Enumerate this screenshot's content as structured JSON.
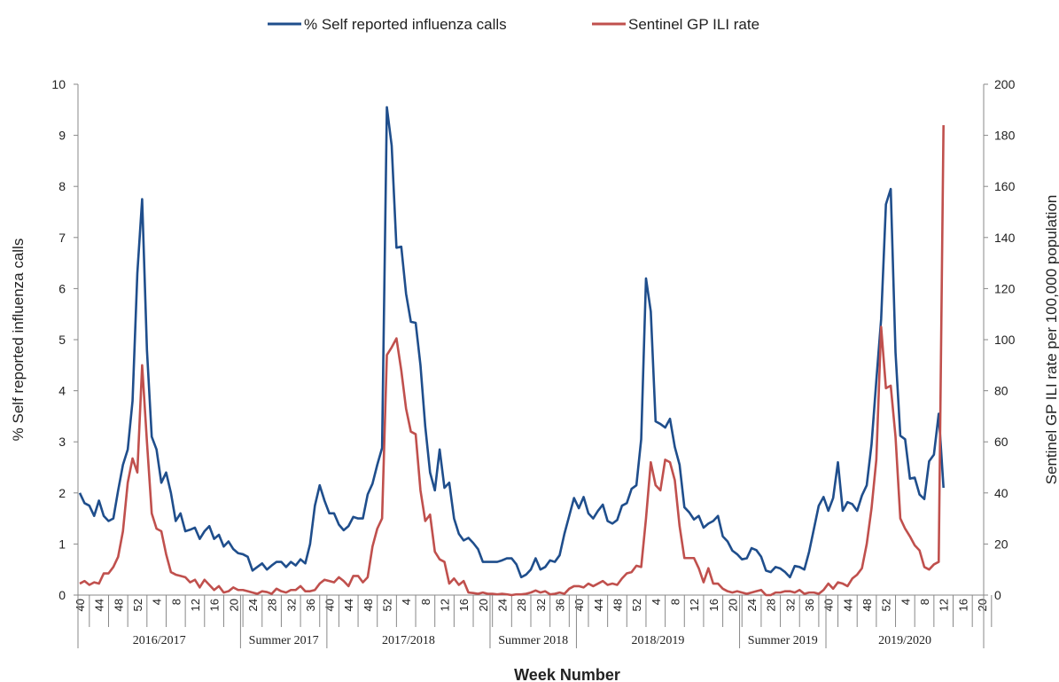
{
  "chart_data": {
    "type": "line",
    "x_label": "Week Number",
    "y_label": "% Self reported influenza calls",
    "y2_label": "Sentinel GP ILI rate per 100,000 population",
    "legend": "top",
    "grid": false,
    "ylim": [
      0,
      10
    ],
    "yticks": [
      0,
      1,
      2,
      3,
      4,
      5,
      6,
      7,
      8,
      9,
      10
    ],
    "y2lim": [
      0,
      200
    ],
    "y2ticks": [
      0,
      20,
      40,
      60,
      80,
      100,
      120,
      140,
      160,
      180,
      200
    ],
    "groups": [
      "2016/2017",
      "Summer 2017",
      "2017/2018",
      "Summer 2018",
      "2018/2019",
      "Summer 2019",
      "2019/2020"
    ],
    "categories": [
      "40",
      null,
      null,
      null,
      "44",
      null,
      null,
      null,
      "48",
      null,
      null,
      null,
      "52",
      null,
      null,
      null,
      "4",
      null,
      null,
      null,
      "8",
      null,
      null,
      null,
      "12",
      null,
      null,
      null,
      "16",
      null,
      null,
      null,
      "20",
      null,
      null,
      null,
      "24",
      null,
      null,
      null,
      "28",
      null,
      null,
      null,
      "32",
      null,
      null,
      null,
      "36",
      null,
      null,
      null,
      "40",
      null,
      null,
      null,
      "44",
      null,
      null,
      null,
      "48",
      null,
      null,
      null,
      "52",
      null,
      null,
      null,
      "4",
      null,
      null,
      null,
      "8",
      null,
      null,
      null,
      "12",
      null,
      null,
      null,
      "16",
      null,
      null,
      null,
      "20",
      null,
      null,
      null,
      "24",
      null,
      null,
      null,
      "28",
      null,
      null,
      null,
      "32",
      null,
      null,
      null,
      "36",
      null,
      null,
      null,
      "40",
      null,
      null,
      null,
      "44",
      null,
      null,
      null,
      "48",
      null,
      null,
      null,
      "52",
      null,
      null,
      null,
      "4",
      null,
      null,
      null,
      "8",
      null,
      null,
      null,
      "12",
      null,
      null,
      null,
      "16",
      null,
      null,
      null,
      "20",
      null,
      null,
      null,
      "24",
      null,
      null,
      null,
      "28",
      null,
      null,
      null,
      "32",
      null,
      null,
      null,
      "36",
      null,
      null,
      null,
      "40",
      null,
      null,
      null,
      "44",
      null,
      null,
      null,
      "48",
      null,
      null,
      null,
      "52",
      null,
      null,
      null,
      "4",
      null,
      null,
      null,
      "8",
      null,
      null,
      null,
      "12",
      null,
      null,
      null,
      "16",
      null,
      null,
      null,
      "20"
    ],
    "series": [
      {
        "name": "% Self reported influenza calls",
        "color": "#1f4e8c",
        "values": [
          2.0,
          1.8,
          1.75,
          1.55,
          1.85,
          1.55,
          1.45,
          1.5,
          2.05,
          2.55,
          2.85,
          3.8,
          6.3,
          7.75,
          4.8,
          3.1,
          2.85,
          2.2,
          2.4,
          2.0,
          1.45,
          1.6,
          1.25,
          1.28,
          1.32,
          1.1,
          1.25,
          1.35,
          1.1,
          1.18,
          0.95,
          1.05,
          0.9,
          0.82,
          0.8,
          0.75,
          0.48,
          0.55,
          0.62,
          0.5,
          0.58,
          0.65,
          0.65,
          0.55,
          0.65,
          0.58,
          0.7,
          0.62,
          1.0,
          1.75,
          2.15,
          1.85,
          1.6,
          1.6,
          1.38,
          1.27,
          1.35,
          1.53,
          1.5,
          1.5,
          1.97,
          2.18,
          2.55,
          2.88,
          9.55,
          8.8,
          6.8,
          6.82,
          5.9,
          5.35,
          5.33,
          4.5,
          3.3,
          2.4,
          2.05,
          2.85,
          2.1,
          2.2,
          1.5,
          1.2,
          1.07,
          1.12,
          1.02,
          0.9,
          0.65,
          0.65,
          0.65,
          0.65,
          0.68,
          0.72,
          0.72,
          0.6,
          0.35,
          0.4,
          0.5,
          0.72,
          0.5,
          0.55,
          0.68,
          0.65,
          0.78,
          1.2,
          1.55,
          1.9,
          1.7,
          1.92,
          1.6,
          1.5,
          1.65,
          1.77,
          1.45,
          1.4,
          1.47,
          1.75,
          1.8,
          2.08,
          2.15,
          3.05,
          6.2,
          5.55,
          3.4,
          3.35,
          3.28,
          3.45,
          2.9,
          2.55,
          1.72,
          1.62,
          1.48,
          1.55,
          1.32,
          1.4,
          1.45,
          1.55,
          1.15,
          1.05,
          0.87,
          0.8,
          0.7,
          0.72,
          0.92,
          0.88,
          0.75,
          0.48,
          0.45,
          0.55,
          0.52,
          0.45,
          0.35,
          0.57,
          0.55,
          0.5,
          0.85,
          1.3,
          1.75,
          1.92,
          1.65,
          1.9,
          2.6,
          1.65,
          1.82,
          1.78,
          1.65,
          1.95,
          2.15,
          2.95,
          4.2,
          5.4,
          7.65,
          7.95,
          4.75,
          3.12,
          3.05,
          2.28,
          2.3,
          1.97,
          1.88,
          2.62,
          2.75,
          3.55,
          2.1,
          null,
          null,
          null,
          null,
          null,
          null,
          null,
          null
        ]
      },
      {
        "name": "Sentinel GP ILI rate",
        "color": "#c0504d",
        "axis": "y2",
        "values": [
          4.5,
          5.5,
          4,
          5,
          4.5,
          8.5,
          8.5,
          11,
          15,
          25,
          44,
          53.5,
          48,
          90,
          60,
          32,
          26,
          25,
          16,
          9,
          8,
          7.5,
          7,
          5,
          6,
          3,
          6,
          4,
          2,
          3.5,
          1,
          1.5,
          3,
          2,
          2,
          1.5,
          1,
          0.5,
          1.5,
          1.2,
          0.5,
          2.5,
          1.5,
          1,
          2,
          2,
          3.5,
          1.5,
          1.5,
          2,
          4.5,
          6,
          5.5,
          5,
          7,
          5.5,
          3.5,
          7.5,
          7.5,
          5,
          7,
          19,
          26,
          30,
          94,
          97,
          100.5,
          88,
          73,
          64,
          63,
          41,
          29,
          31.5,
          17,
          14,
          13,
          4.5,
          6.5,
          4,
          5.5,
          1,
          0.8,
          0.5,
          1,
          0.5,
          0.5,
          0.3,
          0.5,
          0.3,
          0,
          0.3,
          0.3,
          0.5,
          1,
          1.8,
          1,
          1.5,
          0.3,
          0.5,
          1,
          0.5,
          2.5,
          3.5,
          3.5,
          3,
          4.5,
          3.5,
          4.5,
          5.5,
          4,
          4.5,
          4,
          6.5,
          8.5,
          9,
          11.5,
          11,
          30,
          52,
          43,
          41,
          53,
          52,
          45,
          27,
          14.5,
          14.5,
          14.5,
          10.5,
          5,
          10.5,
          4.5,
          4.5,
          2.5,
          1.5,
          1,
          1.5,
          1,
          0.5,
          1,
          1.5,
          2,
          0,
          0,
          1,
          1,
          1.5,
          1.5,
          1,
          2,
          0.5,
          1,
          1,
          0.5,
          2,
          4.5,
          2.5,
          5,
          4.5,
          3.5,
          6.5,
          8,
          10.5,
          20,
          34,
          53,
          105,
          81,
          82,
          62,
          30,
          26,
          23,
          19.5,
          17.5,
          11,
          10,
          12,
          13,
          184,
          null,
          null,
          null,
          null,
          null,
          null,
          null,
          null
        ]
      }
    ]
  }
}
